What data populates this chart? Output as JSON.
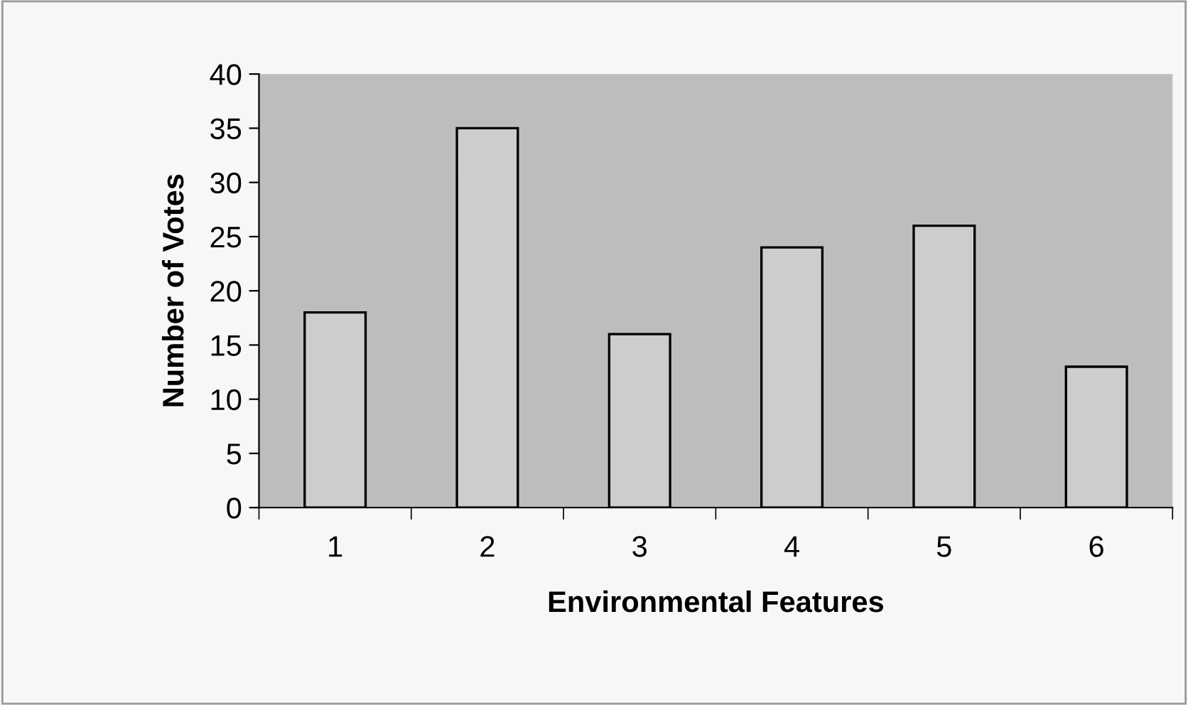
{
  "chart_data": {
    "type": "bar",
    "xlabel": "Environmental Features",
    "ylabel": "Number of Votes",
    "categories": [
      "1",
      "2",
      "3",
      "4",
      "5",
      "6"
    ],
    "values": [
      18,
      35,
      16,
      24,
      26,
      13
    ],
    "color": "#cdcdcd",
    "ylim": [
      0,
      40
    ],
    "yticks": [
      0,
      5,
      10,
      15,
      20,
      25,
      30,
      35,
      40
    ],
    "grid": false
  }
}
